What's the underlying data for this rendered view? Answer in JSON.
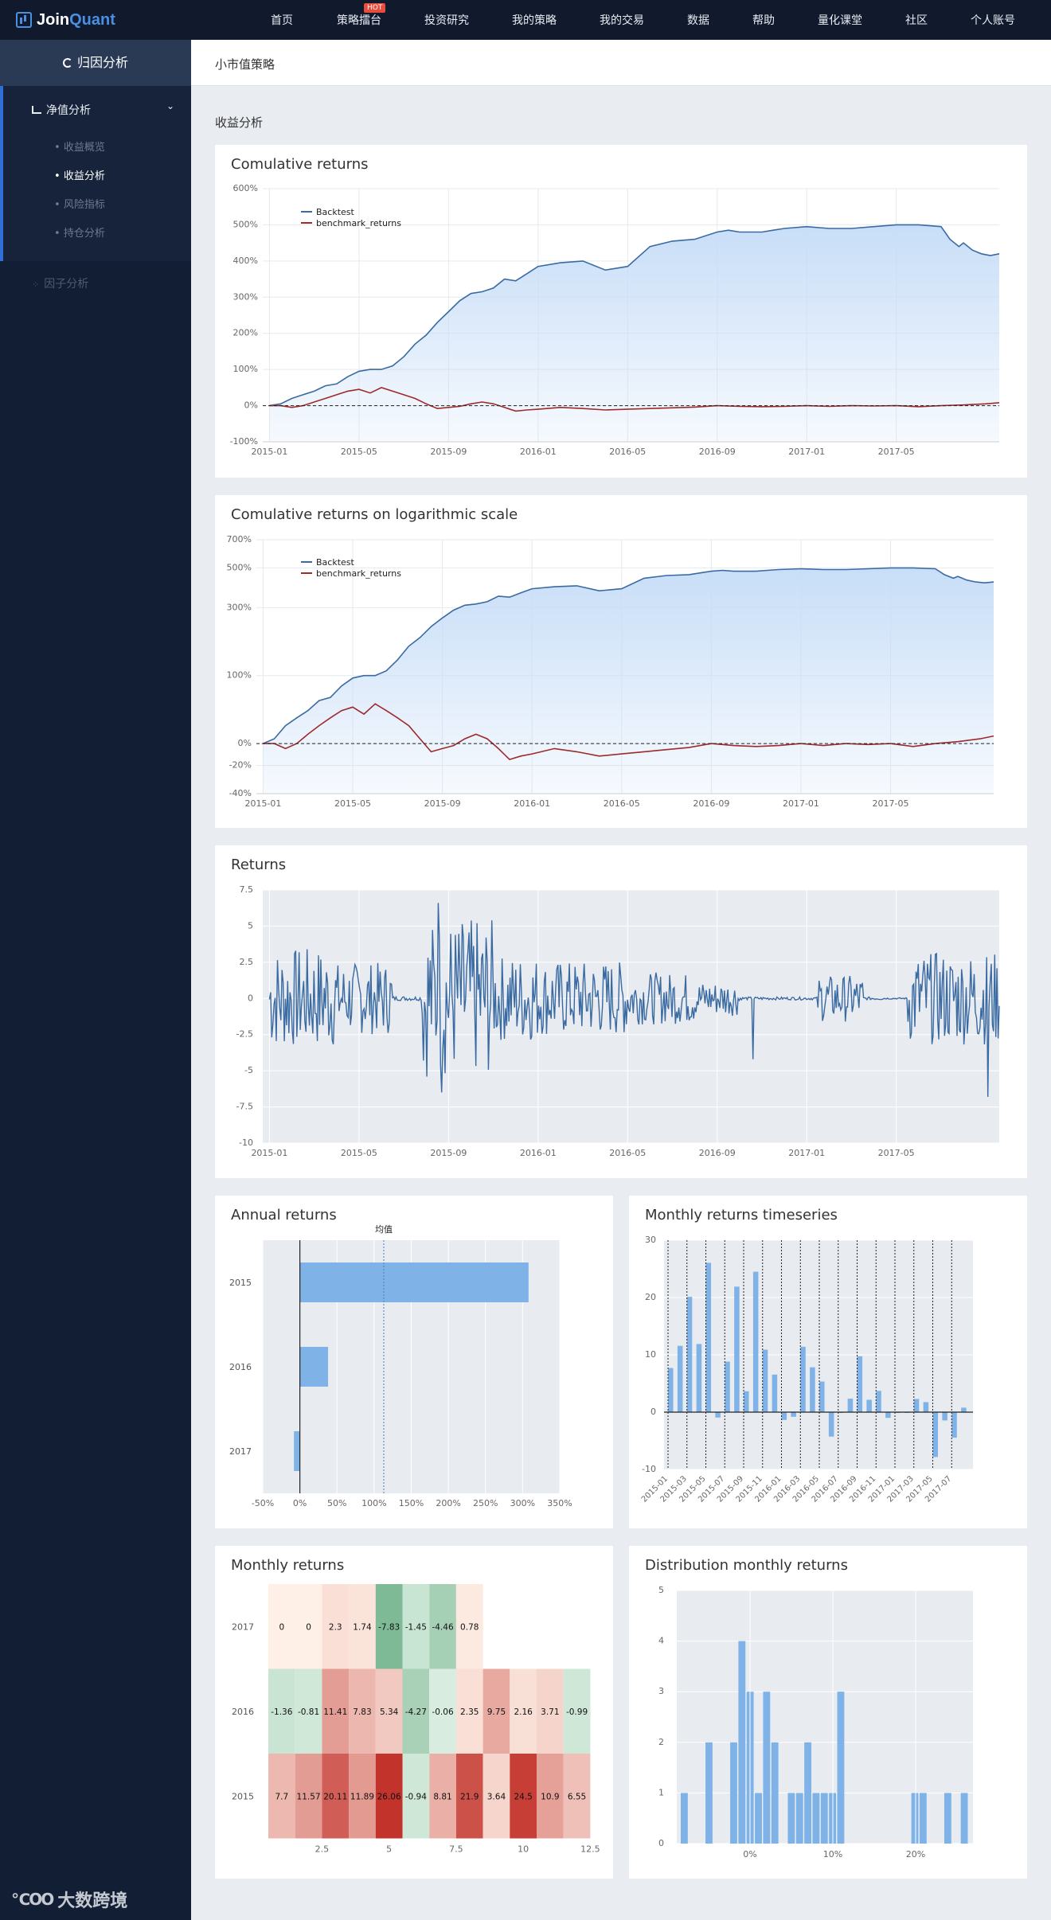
{
  "nav": {
    "logo_part1": "Join",
    "logo_part2": "Quant",
    "items": [
      "首页",
      "策略擂台",
      "投资研究",
      "我的策略",
      "我的交易",
      "数据",
      "帮助",
      "量化课堂",
      "社区",
      "个人账号"
    ],
    "hot_badge": "HOT"
  },
  "sidebar": {
    "title": "归因分析",
    "group_label": "净值分析",
    "sub_items": [
      "收益概览",
      "收益分析",
      "风险指标",
      "持仓分析"
    ],
    "active_sub": "收益分析",
    "factor_label": "因子分析"
  },
  "page": {
    "strategy_name": "小市值策略",
    "section_title": "收益分析"
  },
  "charts": {
    "cum": {
      "title": "Comulative returns"
    },
    "log": {
      "title": "Comulative returns on logarithmic scale"
    },
    "ret": {
      "title": "Returns"
    },
    "annual": {
      "title": "Annual returns"
    },
    "mts": {
      "title": "Monthly returns timeseries"
    },
    "heat": {
      "title": "Monthly returns"
    },
    "dist": {
      "title": "Distribution monthly returns"
    }
  },
  "watermark": {
    "icon": "℃OO",
    "text": "大数跨境"
  },
  "colors": {
    "backtest": "#3a6aa2",
    "benchmark": "#9e2a2a",
    "bar": "#7fb3e8",
    "fill": "#c5dcf7"
  },
  "chart_data": [
    {
      "id": "cum",
      "type": "area",
      "title": "Comulative returns",
      "x_ticks": [
        "2015-01",
        "2015-05",
        "2015-09",
        "2016-01",
        "2016-05",
        "2016-09",
        "2017-01",
        "2017-05"
      ],
      "y_ticks": [
        "600%",
        "500%",
        "400%",
        "300%",
        "200%",
        "100%",
        "0%",
        "-100%"
      ],
      "ylim": [
        -100,
        600
      ],
      "legend": [
        "Backtest",
        "benchmark_returns"
      ],
      "series": [
        {
          "name": "Backtest",
          "x": [
            0,
            0.5,
            1,
            1.5,
            2,
            2.5,
            3,
            3.5,
            4,
            4.5,
            5,
            5.5,
            6,
            6.5,
            7,
            7.5,
            8,
            8.5,
            9,
            9.5,
            10,
            10.5,
            11,
            11.5,
            12,
            13,
            14,
            15,
            16,
            17,
            18,
            19,
            20,
            20.5,
            21,
            21.5,
            22,
            22.5,
            23,
            24,
            25,
            26,
            27,
            28,
            29,
            30,
            30.4,
            30.8,
            31,
            31.4,
            31.8,
            32.2,
            32.6
          ],
          "y": [
            0,
            5,
            20,
            30,
            40,
            55,
            60,
            80,
            95,
            100,
            100,
            110,
            135,
            170,
            195,
            230,
            260,
            290,
            310,
            315,
            325,
            350,
            345,
            365,
            385,
            395,
            400,
            375,
            385,
            440,
            455,
            460,
            480,
            485,
            480,
            480,
            480,
            485,
            490,
            495,
            490,
            490,
            495,
            500,
            500,
            495,
            460,
            440,
            450,
            430,
            420,
            415,
            420
          ]
        },
        {
          "name": "benchmark_returns",
          "x": [
            0,
            0.5,
            1,
            1.5,
            2,
            2.5,
            3,
            3.5,
            4,
            4.5,
            5,
            5.5,
            6,
            6.5,
            7,
            7.5,
            8,
            8.5,
            9,
            9.5,
            10,
            10.5,
            11,
            11.5,
            12,
            13,
            14,
            15,
            16,
            17,
            18,
            19,
            20,
            21,
            22,
            23,
            24,
            25,
            26,
            27,
            28,
            29,
            30,
            31,
            32,
            32.6
          ],
          "y": [
            0,
            0,
            -5,
            0,
            10,
            20,
            30,
            40,
            45,
            35,
            50,
            40,
            30,
            20,
            5,
            -8,
            -5,
            -2,
            5,
            10,
            5,
            -5,
            -15,
            -12,
            -10,
            -5,
            -8,
            -12,
            -10,
            -8,
            -6,
            -4,
            0,
            -2,
            -3,
            -2,
            0,
            -2,
            0,
            -1,
            0,
            -3,
            0,
            2,
            5,
            8
          ]
        }
      ]
    },
    {
      "id": "log",
      "type": "area",
      "title": "Comulative returns on logarithmic scale",
      "x_ticks": [
        "2015-01",
        "2015-05",
        "2015-09",
        "2016-01",
        "2016-05",
        "2016-09",
        "2017-01",
        "2017-05"
      ],
      "y_ticks": [
        "700%",
        "500%",
        "300%",
        "100%",
        "0%",
        "-20%",
        "-40%"
      ],
      "legend": [
        "Backtest",
        "benchmark_returns"
      ]
    },
    {
      "id": "ret",
      "type": "line",
      "title": "Returns",
      "x_ticks": [
        "2015-01",
        "2015-05",
        "2015-09",
        "2016-01",
        "2016-05",
        "2016-09",
        "2017-01",
        "2017-05"
      ],
      "y_ticks": [
        "7.5",
        "5",
        "2.5",
        "0",
        "-2.5",
        "-5",
        "-7.5",
        "-10"
      ],
      "ylim": [
        -10,
        7.5
      ],
      "series": [
        {
          "name": "Backtest",
          "generated": true
        }
      ]
    },
    {
      "id": "annual",
      "type": "bar",
      "title": "Annual returns",
      "categories": [
        "2015",
        "2016",
        "2017"
      ],
      "values": [
        308,
        38,
        -8
      ],
      "mean_label": "均值",
      "mean": 113,
      "x_ticks": [
        "-50%",
        "0%",
        "50%",
        "100%",
        "150%",
        "200%",
        "250%",
        "300%",
        "350%"
      ],
      "xlim": [
        -50,
        350
      ]
    },
    {
      "id": "mts",
      "type": "bar",
      "title": "Monthly returns timeseries",
      "categories": [
        "2015-01",
        "2015-02",
        "2015-03",
        "2015-04",
        "2015-05",
        "2015-06",
        "2015-07",
        "2015-08",
        "2015-09",
        "2015-10",
        "2015-11",
        "2015-12",
        "2016-01",
        "2016-02",
        "2016-03",
        "2016-04",
        "2016-05",
        "2016-06",
        "2016-07",
        "2016-08",
        "2016-09",
        "2016-10",
        "2016-11",
        "2016-12",
        "2017-01",
        "2017-02",
        "2017-03",
        "2017-04",
        "2017-05",
        "2017-06",
        "2017-07",
        "2017-08"
      ],
      "x_ticks": [
        "2015-01",
        "2015-03",
        "2015-05",
        "2015-07",
        "2015-09",
        "2015-11",
        "2016-01",
        "2016-03",
        "2016-05",
        "2016-07",
        "2016-09",
        "2016-11",
        "2017-01",
        "2017-03",
        "2017-05",
        "2017-07"
      ],
      "values": [
        7.7,
        11.57,
        20.11,
        11.89,
        26.06,
        -0.94,
        8.81,
        21.9,
        3.64,
        24.5,
        10.9,
        6.55,
        -1.36,
        -0.81,
        11.41,
        7.83,
        5.34,
        -4.27,
        -0.06,
        2.35,
        9.75,
        2.16,
        3.71,
        -0.99,
        0,
        0,
        2.3,
        1.74,
        -7.83,
        -1.45,
        -4.46,
        0.78
      ],
      "y_ticks": [
        "30",
        "20",
        "10",
        "0",
        "-10"
      ],
      "ylim": [
        -10,
        30
      ]
    },
    {
      "id": "heat",
      "type": "heatmap",
      "title": "Monthly returns",
      "rows": [
        "2017",
        "2016",
        "2015"
      ],
      "matrix": [
        [
          0,
          0,
          2.3,
          1.74,
          -7.83,
          -1.45,
          -4.46,
          0.78
        ],
        [
          -1.36,
          -0.81,
          11.41,
          7.83,
          5.34,
          -4.27,
          -0.06,
          2.35,
          9.75,
          2.16,
          3.71,
          -0.99
        ],
        [
          7.7,
          11.57,
          20.11,
          11.89,
          26.06,
          -0.94,
          8.81,
          21.9,
          3.64,
          24.5,
          10.9,
          6.55
        ]
      ],
      "x_ticks": [
        "2.5",
        "5",
        "7.5",
        "10",
        "12.5"
      ]
    },
    {
      "id": "dist",
      "type": "bar",
      "title": "Distribution monthly returns",
      "bin_counts": [
        1,
        0,
        0,
        2,
        0,
        0,
        2,
        4,
        3,
        1,
        3,
        2,
        0,
        1,
        1,
        2,
        1,
        1,
        1,
        3,
        0,
        0,
        0,
        0,
        0,
        0,
        0,
        0,
        1,
        1,
        0,
        0,
        1,
        0,
        1
      ],
      "x_ticks": [
        "0%",
        "10%",
        "20%"
      ],
      "y_ticks": [
        "5",
        "4",
        "3",
        "2",
        "1",
        "0"
      ],
      "ylim": [
        0,
        5
      ]
    }
  ]
}
